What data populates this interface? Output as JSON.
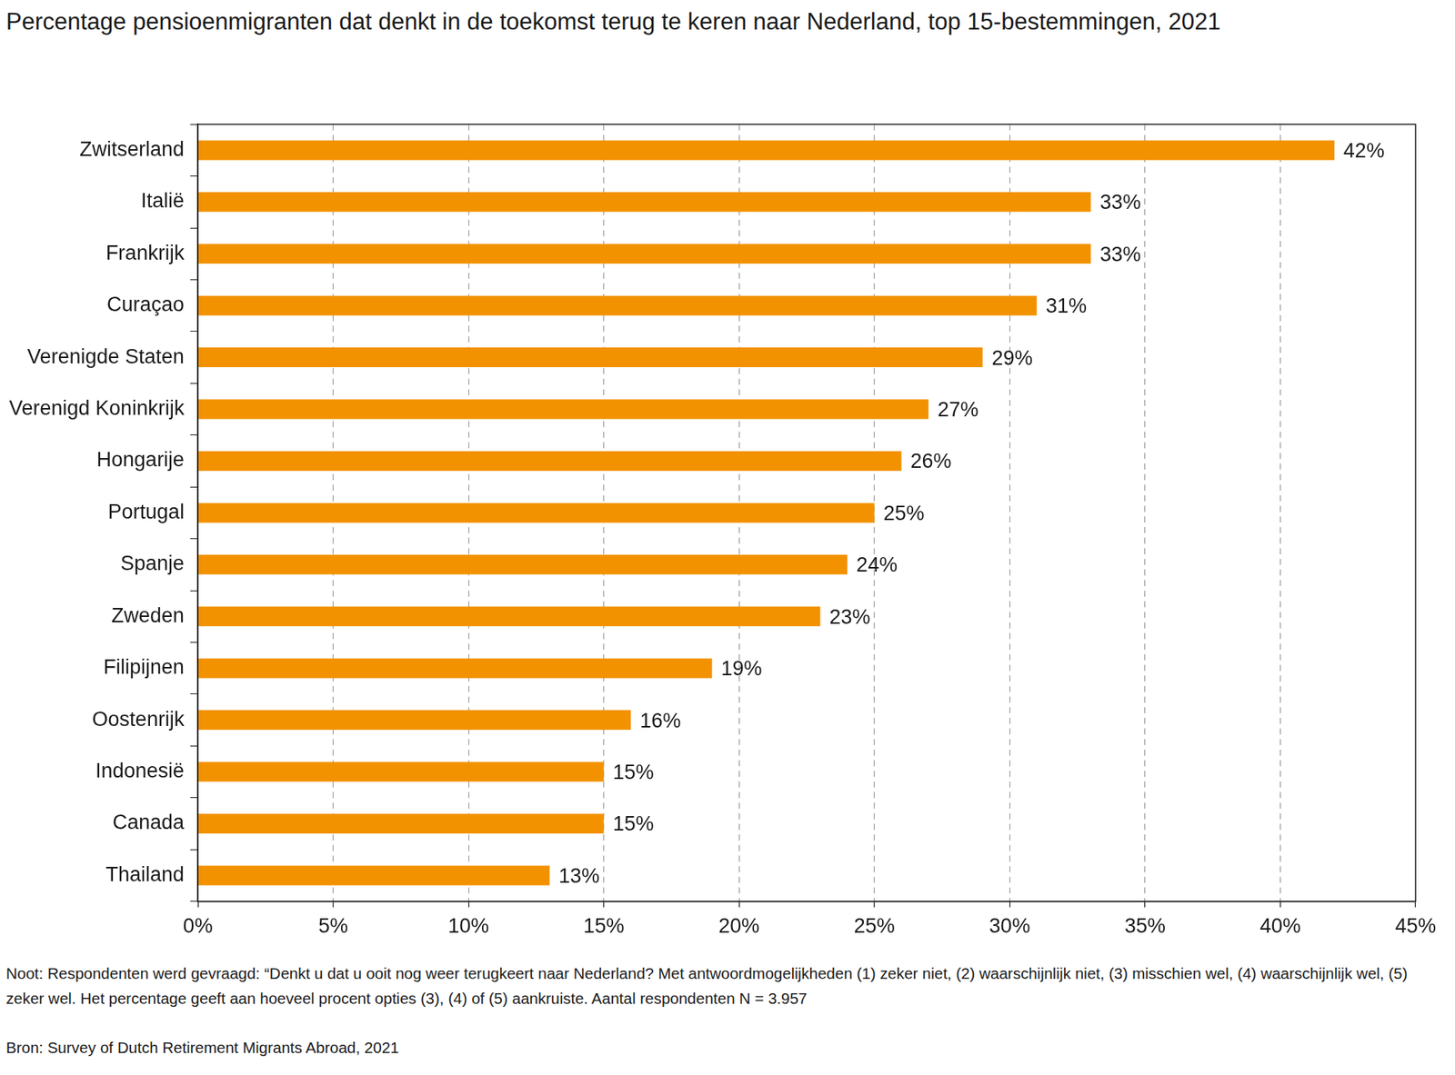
{
  "chart_data": {
    "type": "bar",
    "orientation": "horizontal",
    "title": "Percentage pensioenmigranten dat denkt in de toekomst terug te keren naar Nederland, top 15-bestemmingen, 2021",
    "categories": [
      "Zwitserland",
      "Italië",
      "Frankrijk",
      "Curaçao",
      "Verenigde Staten",
      "Verenigd Koninkrijk",
      "Hongarije",
      "Portugal",
      "Spanje",
      "Zweden",
      "Filipijnen",
      "Oostenrijk",
      "Indonesië",
      "Canada",
      "Thailand"
    ],
    "values": [
      42,
      33,
      33,
      31,
      29,
      27,
      26,
      25,
      24,
      23,
      19,
      16,
      15,
      15,
      13
    ],
    "value_labels": [
      "42%",
      "33%",
      "33%",
      "31%",
      "29%",
      "27%",
      "26%",
      "25%",
      "24%",
      "23%",
      "19%",
      "16%",
      "15%",
      "15%",
      "13%"
    ],
    "data_labels": true,
    "color": "#f39200",
    "xlim": [
      0,
      45
    ],
    "xticks": [
      {
        "value": 0,
        "label": "0%"
      },
      {
        "value": 5,
        "label": "5%"
      },
      {
        "value": 10,
        "label": "10%"
      },
      {
        "value": 15,
        "label": "15%"
      },
      {
        "value": 20,
        "label": "20%"
      },
      {
        "value": 25,
        "label": "25%"
      },
      {
        "value": 30,
        "label": "30%"
      },
      {
        "value": 35,
        "label": "35%"
      },
      {
        "value": 40,
        "label": "40%"
      },
      {
        "value": 45,
        "label": "45%"
      }
    ],
    "grid": true,
    "note": "Noot: Respondenten werd gevraagd: “Denkt u dat u ooit nog weer terugkeert naar Nederland? Met antwoordmogelijkheden (1) zeker niet, (2) waarschijnlijk niet, (3) misschien wel, (4) waarschijnlijk wel, (5) zeker wel. Het percentage geeft aan hoeveel procent opties (3), (4) of (5) aankruiste. Aantal respondenten N = 3.957",
    "source": "Bron: Survey of Dutch Retirement Migrants Abroad, 2021"
  }
}
